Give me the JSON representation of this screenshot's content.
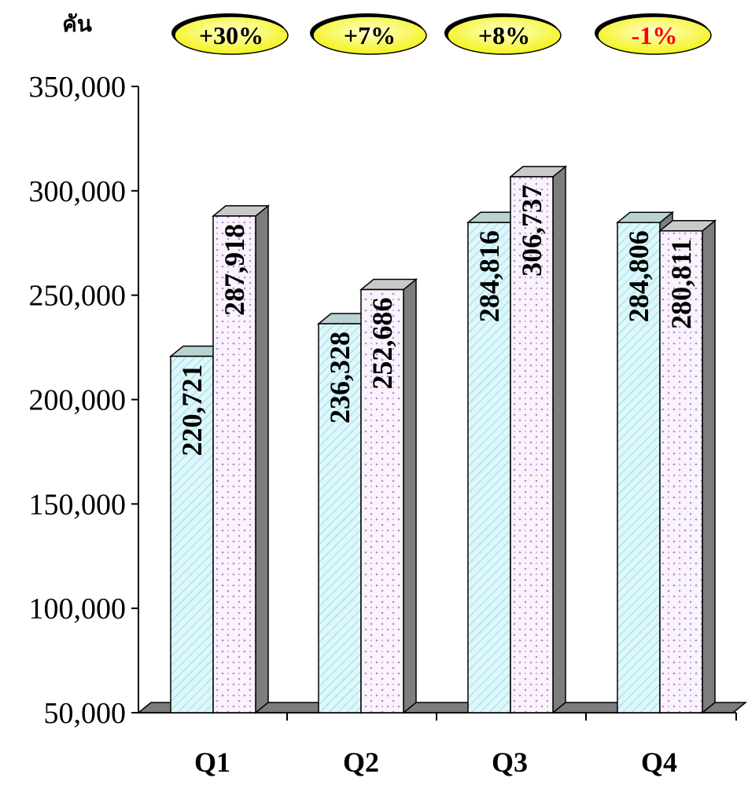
{
  "chart_data": {
    "type": "bar",
    "unit_label": "คัน",
    "categories": [
      "Q1",
      "Q2",
      "Q3",
      "Q4"
    ],
    "series": [
      {
        "values": [
          220721,
          236328,
          284816,
          284806
        ]
      },
      {
        "values": [
          287918,
          252686,
          306737,
          280811
        ]
      }
    ],
    "data_labels": [
      [
        "220,721",
        "236,328",
        "284,816",
        "284,806"
      ],
      [
        "287,918",
        "252,686",
        "306,737",
        "280,811"
      ]
    ],
    "growth_badges": [
      "+30%",
      "+7%",
      "+8%",
      "-1%"
    ],
    "yticks": [
      "50,000",
      "100,000",
      "150,000",
      "200,000",
      "250,000",
      "300,000",
      "350,000"
    ],
    "ylim": [
      50000,
      350000
    ],
    "grid": false,
    "legend": "none",
    "colors": {
      "series1_fill": "#dff6fb",
      "series1_hatch": "#a9e7ee",
      "series2_fill": "#fbf3fb",
      "series2_dots": "#b389e0",
      "bar_top": "#b9d2d2",
      "bar_top_2": "#c9c9c9",
      "bar_side": "#7d7d7d",
      "floor": "#7d7d7d",
      "badge_fill": "#f3f318",
      "badge_highlight": "#ffffcc",
      "badge_positive_text": "#000000",
      "badge_negative_text": "#ff0000"
    }
  }
}
